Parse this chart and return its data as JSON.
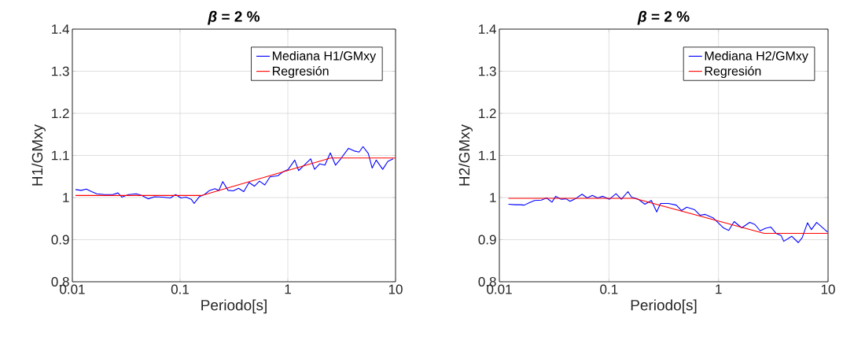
{
  "chart_data": [
    {
      "type": "line",
      "title": "*β* = 2 %",
      "xlabel": "Periodo[s]",
      "ylabel": "H1/GMxy",
      "log": "x",
      "xlim": [
        0.01,
        10
      ],
      "ylim": [
        0.8,
        1.4
      ],
      "xticks": [
        0.01,
        0.1,
        1,
        10
      ],
      "yticks": [
        0.8,
        0.9,
        1,
        1.1,
        1.2,
        1.3,
        1.4
      ],
      "grid": true,
      "legend": "top right",
      "marker": "none",
      "series": [
        {
          "name": "Mediana H1/GMxy",
          "color": "#0000ff",
          "x": [
            0.0107,
            0.0121,
            0.0135,
            0.0151,
            0.0169,
            0.02,
            0.0237,
            0.0265,
            0.0288,
            0.0332,
            0.0393,
            0.0439,
            0.0505,
            0.0581,
            0.0687,
            0.0813,
            0.091,
            0.1017,
            0.1138,
            0.127,
            0.135,
            0.151,
            0.168,
            0.188,
            0.211,
            0.229,
            0.249,
            0.279,
            0.312,
            0.349,
            0.39,
            0.437,
            0.489,
            0.546,
            0.611,
            0.684,
            0.809,
            0.904,
            1.01,
            1.16,
            1.26,
            1.42,
            1.63,
            1.77,
            1.98,
            2.21,
            2.48,
            2.77,
            3.1,
            3.66,
            4.1,
            4.59,
            4.99,
            5.58,
            6.07,
            6.61,
            7.6,
            8.49,
            9.51
          ],
          "values": [
            1.019,
            1.017,
            1.02,
            1.014,
            1.009,
            1.007,
            1.007,
            1.011,
            1.001,
            1.007,
            1.009,
            1.005,
            0.997,
            1.002,
            1.001,
            0.999,
            1.007,
            0.999,
            1.001,
            0.996,
            0.986,
            1.002,
            1.007,
            1.017,
            1.021,
            1.017,
            1.038,
            1.017,
            1.016,
            1.022,
            1.014,
            1.036,
            1.027,
            1.039,
            1.03,
            1.049,
            1.052,
            1.061,
            1.067,
            1.089,
            1.064,
            1.077,
            1.092,
            1.067,
            1.08,
            1.077,
            1.106,
            1.077,
            1.092,
            1.117,
            1.111,
            1.108,
            1.121,
            1.105,
            1.07,
            1.089,
            1.067,
            1.086,
            1.092
          ]
        },
        {
          "name": "Regresión",
          "color": "#ff0000",
          "x": [
            0.0107,
            0.16,
            2.5,
            10
          ],
          "values": [
            1.005,
            1.005,
            1.094,
            1.094
          ]
        }
      ]
    },
    {
      "type": "line",
      "title": "*β* = 2 %",
      "xlabel": "Periodo[s]",
      "ylabel": "H2/GMxy",
      "log": "x",
      "xlim": [
        0.01,
        10
      ],
      "ylim": [
        0.8,
        1.4
      ],
      "xticks": [
        0.01,
        0.1,
        1,
        10
      ],
      "yticks": [
        0.8,
        0.9,
        1,
        1.1,
        1.2,
        1.3,
        1.4
      ],
      "grid": true,
      "legend": "top right",
      "marker": "none",
      "series": [
        {
          "name": "Mediana H2/GMxy",
          "color": "#0000ff",
          "x": [
            0.0121,
            0.0139,
            0.0155,
            0.0169,
            0.0188,
            0.021,
            0.0242,
            0.027,
            0.0302,
            0.0327,
            0.0365,
            0.0407,
            0.0442,
            0.0494,
            0.0568,
            0.0634,
            0.0706,
            0.0788,
            0.0881,
            0.101,
            0.116,
            0.13,
            0.149,
            0.161,
            0.185,
            0.213,
            0.244,
            0.273,
            0.296,
            0.349,
            0.412,
            0.46,
            0.514,
            0.607,
            0.678,
            0.755,
            0.891,
            0.995,
            1.11,
            1.24,
            1.39,
            1.63,
            1.93,
            2.15,
            2.4,
            2.69,
            3.0,
            3.35,
            3.73,
            3.94,
            4.66,
            5.35,
            5.81,
            6.49,
            7.05,
            7.87,
            8.77,
            9.9
          ],
          "values": [
            0.984,
            0.983,
            0.983,
            0.982,
            0.988,
            0.993,
            0.994,
            0.999,
            0.989,
            1.003,
            0.996,
            0.997,
            0.991,
            0.997,
            1.008,
            0.999,
            1.005,
            0.999,
            1.003,
            0.996,
            1.009,
            0.996,
            1.014,
            1.001,
            0.996,
            0.984,
            0.993,
            0.966,
            0.986,
            0.986,
            0.982,
            0.969,
            0.977,
            0.971,
            0.958,
            0.96,
            0.952,
            0.94,
            0.928,
            0.922,
            0.943,
            0.928,
            0.941,
            0.936,
            0.921,
            0.927,
            0.93,
            0.915,
            0.91,
            0.896,
            0.908,
            0.893,
            0.905,
            0.94,
            0.924,
            0.941,
            0.93,
            0.918
          ]
        },
        {
          "name": "Regresión",
          "color": "#ff0000",
          "x": [
            0.0121,
            0.171,
            2.61,
            10
          ],
          "values": [
            0.998,
            0.998,
            0.915,
            0.915
          ]
        }
      ]
    }
  ]
}
